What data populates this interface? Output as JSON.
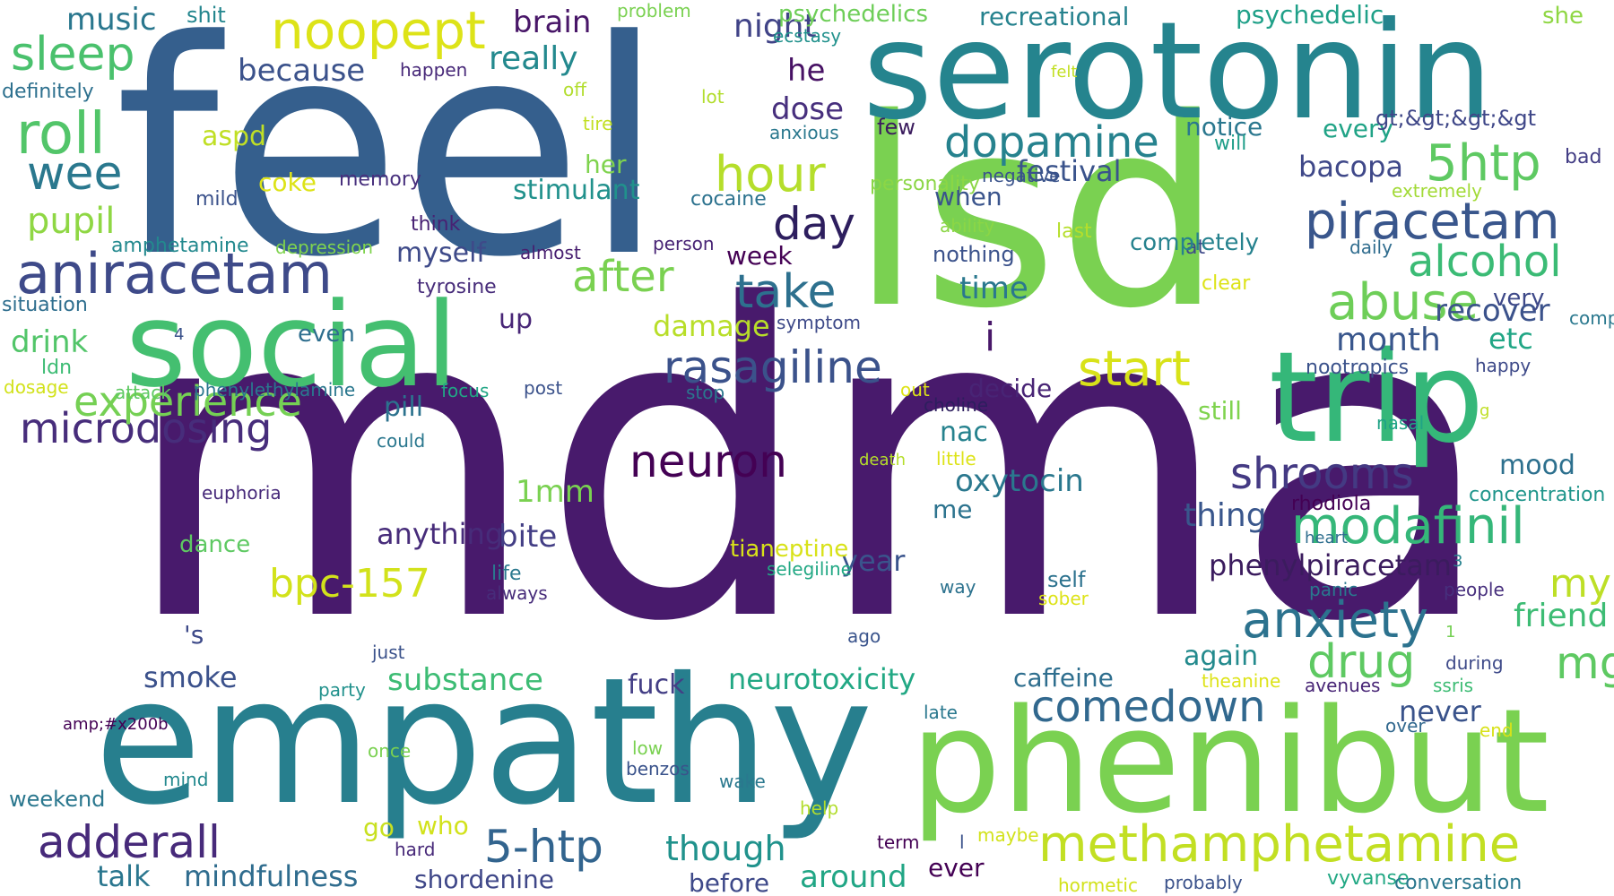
{
  "words": [
    {
      "text": "mdma",
      "color": "#481a6c"
    },
    {
      "text": "feel",
      "color": "#355f8d"
    },
    {
      "text": "lsd",
      "color": "#7ad151"
    },
    {
      "text": "serotonin",
      "color": "#25848e"
    },
    {
      "text": "empathy",
      "color": "#277f8e"
    },
    {
      "text": "phenibut",
      "color": "#7ad151"
    },
    {
      "text": "social",
      "color": "#44bf70"
    },
    {
      "text": "trip",
      "color": "#35b779"
    },
    {
      "text": "aniracetam",
      "color": "#3e4a89"
    },
    {
      "text": "noopept",
      "color": "#dde318"
    },
    {
      "text": "sleep",
      "color": "#4ac16d"
    },
    {
      "text": "roll",
      "color": "#52c569"
    },
    {
      "text": "wee",
      "color": "#2a788e"
    },
    {
      "text": "pupil",
      "color": "#8fd744"
    },
    {
      "text": "dopamine",
      "color": "#26828e"
    },
    {
      "text": "piracetam",
      "color": "#39568c"
    },
    {
      "text": "5htp",
      "color": "#5ec962"
    },
    {
      "text": "alcohol",
      "color": "#3bbb75"
    },
    {
      "text": "abuse",
      "color": "#6ece58"
    },
    {
      "text": "hour",
      "color": "#b5de2b"
    },
    {
      "text": "day",
      "color": "#2d1e5e"
    },
    {
      "text": "after",
      "color": "#7ad151"
    },
    {
      "text": "take",
      "color": "#2d708e"
    },
    {
      "text": "rasagiline",
      "color": "#3b528b"
    },
    {
      "text": "start",
      "color": "#d8e219"
    },
    {
      "text": "methamphetamine",
      "color": "#c2df23"
    },
    {
      "text": "microdosing",
      "color": "#472d7b"
    },
    {
      "text": "experience",
      "color": "#75d054"
    },
    {
      "text": "neuron",
      "color": "#440154"
    },
    {
      "text": "modafinil",
      "color": "#35b779"
    },
    {
      "text": "anxiety",
      "color": "#2c728e"
    },
    {
      "text": "shrooms",
      "color": "#443a83"
    },
    {
      "text": "comedown",
      "color": "#31688e"
    },
    {
      "text": "drug",
      "color": "#5ec962"
    },
    {
      "text": "adderall",
      "color": "#472a7a"
    },
    {
      "text": "5-htp",
      "color": "#32648e"
    },
    {
      "text": "bpc-157",
      "color": "#d2e21b"
    },
    {
      "text": "oxytocin",
      "color": "#2a788e"
    },
    {
      "text": "phenylpiracetam",
      "color": "#3b1c5e"
    },
    {
      "text": "mindfulness",
      "color": "#2f6c8e"
    },
    {
      "text": "neurotoxicity",
      "color": "#22a884"
    },
    {
      "text": "substance",
      "color": "#3dbc74"
    },
    {
      "text": "though",
      "color": "#20928c"
    },
    {
      "text": "around",
      "color": "#21a685"
    },
    {
      "text": "talk",
      "color": "#2a768e"
    },
    {
      "text": "smoke",
      "color": "#3b518b"
    },
    {
      "text": "drink",
      "color": "#52c569"
    },
    {
      "text": "music",
      "color": "#2a778e"
    },
    {
      "text": "because",
      "color": "#3b528b"
    },
    {
      "text": "brain",
      "color": "#481668"
    },
    {
      "text": "really",
      "color": "#23898e"
    },
    {
      "text": "night",
      "color": "#404387"
    },
    {
      "text": "he",
      "color": "#471164"
    },
    {
      "text": "dose",
      "color": "#472f7d"
    },
    {
      "text": "festival",
      "color": "#3a538b"
    },
    {
      "text": "notice",
      "color": "#2a778e"
    },
    {
      "text": "every",
      "color": "#20a386"
    },
    {
      "text": "bacopa",
      "color": "#3f4889"
    },
    {
      "text": "i",
      "color": "#481769"
    },
    {
      "text": "time",
      "color": "#2a788e"
    },
    {
      "text": "month",
      "color": "#39568c"
    },
    {
      "text": "etc",
      "color": "#21a685"
    },
    {
      "text": "recover",
      "color": "#3b528b"
    },
    {
      "text": "mood",
      "color": "#2d708e"
    },
    {
      "text": "my",
      "color": "#bddf26"
    },
    {
      "text": "mg",
      "color": "#5ec962"
    },
    {
      "text": "friend",
      "color": "#3dbc74"
    },
    {
      "text": "never",
      "color": "#3a538b"
    },
    {
      "text": "again",
      "color": "#238a8d"
    },
    {
      "text": "thing",
      "color": "#39568c"
    },
    {
      "text": "caffeine",
      "color": "#2e6e8e"
    },
    {
      "text": "decide",
      "color": "#482475"
    },
    {
      "text": "nac",
      "color": "#26828e"
    },
    {
      "text": "me",
      "color": "#2c738e"
    },
    {
      "text": "year",
      "color": "#3a548c"
    },
    {
      "text": "damage",
      "color": "#b8de29"
    },
    {
      "text": "myself",
      "color": "#3e4a89"
    },
    {
      "text": "week",
      "color": "#440154"
    },
    {
      "text": "pill",
      "color": "#2c728e"
    },
    {
      "text": "up",
      "color": "#482677"
    },
    {
      "text": "even",
      "color": "#2e6e8e"
    },
    {
      "text": "anything",
      "color": "#472c7a"
    },
    {
      "text": "bite",
      "color": "#433e85"
    },
    {
      "text": "1mm",
      "color": "#7ad151"
    },
    {
      "text": "fuck",
      "color": "#433e85"
    },
    {
      "text": "stimulant",
      "color": "#21918c"
    },
    {
      "text": "her",
      "color": "#7fd34e"
    },
    {
      "text": "aspd",
      "color": "#c0df25"
    },
    {
      "text": "coke",
      "color": "#dde318"
    },
    {
      "text": "shit",
      "color": "#24868e"
    },
    {
      "text": "psychedelics",
      "color": "#6ece58"
    },
    {
      "text": "recreational",
      "color": "#26828e"
    },
    {
      "text": "psychedelic",
      "color": "#1fa088"
    },
    {
      "text": "she",
      "color": "#8fd744"
    },
    {
      "text": "gt;&gt;&gt;&gt",
      "color": "#3f4788"
    },
    {
      "text": "bad",
      "color": "#433e85"
    },
    {
      "text": "extremely",
      "color": "#a2da37"
    },
    {
      "text": "will",
      "color": "#1f9e89"
    },
    {
      "text": "felt",
      "color": "#c2df23"
    },
    {
      "text": "lot",
      "color": "#b2dd2d"
    },
    {
      "text": "off",
      "color": "#b2dd2d"
    },
    {
      "text": "tire",
      "color": "#c2df23"
    },
    {
      "text": "anxious",
      "color": "#2a788e"
    },
    {
      "text": "ecstasy",
      "color": "#21918c"
    },
    {
      "text": "problem",
      "color": "#7ad151"
    },
    {
      "text": "happen",
      "color": "#482979"
    },
    {
      "text": "definitely",
      "color": "#2d708e"
    },
    {
      "text": "few",
      "color": "#3b1c5e"
    },
    {
      "text": "negative",
      "color": "#3a538b"
    },
    {
      "text": "when",
      "color": "#3a548c"
    },
    {
      "text": "ability",
      "color": "#8bd646"
    },
    {
      "text": "last",
      "color": "#b5de2b"
    },
    {
      "text": "daily",
      "color": "#2f6c8e"
    },
    {
      "text": "nothing",
      "color": "#3b528b"
    },
    {
      "text": "at",
      "color": "#3e4a89"
    },
    {
      "text": "clear",
      "color": "#dde318"
    },
    {
      "text": "person",
      "color": "#482475"
    },
    {
      "text": "personality",
      "color": "#8bd646"
    },
    {
      "text": "completely",
      "color": "#26828e"
    },
    {
      "text": "cocaine",
      "color": "#2c728e"
    },
    {
      "text": "memory",
      "color": "#472f7d"
    },
    {
      "text": "think",
      "color": "#482173"
    },
    {
      "text": "mild",
      "color": "#3b528b"
    },
    {
      "text": "amphetamine",
      "color": "#23898e"
    },
    {
      "text": "depression",
      "color": "#7fd34e"
    },
    {
      "text": "almost",
      "color": "#481f70"
    },
    {
      "text": "situation",
      "color": "#2e6e8e"
    },
    {
      "text": "tyrosine",
      "color": "#472c7a"
    },
    {
      "text": "symptom",
      "color": "#3e4a89"
    },
    {
      "text": "4",
      "color": "#3b528b"
    },
    {
      "text": "ldn",
      "color": "#3dbc74"
    },
    {
      "text": "dosage",
      "color": "#d2e21b"
    },
    {
      "text": "attack",
      "color": "#5ec962"
    },
    {
      "text": "phenylethylamine",
      "color": "#2a778e"
    },
    {
      "text": "focus",
      "color": "#21a685"
    },
    {
      "text": "post",
      "color": "#3b528b"
    },
    {
      "text": "stop",
      "color": "#2a778e"
    },
    {
      "text": "out",
      "color": "#dde318"
    },
    {
      "text": "choline",
      "color": "#2d1e5e"
    },
    {
      "text": "could",
      "color": "#2a778e"
    },
    {
      "text": "little",
      "color": "#dde318"
    },
    {
      "text": "death",
      "color": "#b5de2b"
    },
    {
      "text": "still",
      "color": "#7fd34e"
    },
    {
      "text": "g",
      "color": "#c0df25"
    },
    {
      "text": "very",
      "color": "#3e4989"
    },
    {
      "text": "nootropics",
      "color": "#3b528b"
    },
    {
      "text": "happy",
      "color": "#3e4a89"
    },
    {
      "text": "compassionate",
      "color": "#2a788e"
    },
    {
      "text": "nasal",
      "color": "#20a386"
    },
    {
      "text": "concentration",
      "color": "#1f958b"
    },
    {
      "text": "rhodiola",
      "color": "#440154"
    },
    {
      "text": "heart",
      "color": "#2e6e8e"
    },
    {
      "text": "3",
      "color": "#26828e"
    },
    {
      "text": "panic",
      "color": "#2a788e"
    },
    {
      "text": "people",
      "color": "#472f7d"
    },
    {
      "text": "1",
      "color": "#75d054"
    },
    {
      "text": "during",
      "color": "#3e4a89"
    },
    {
      "text": "self",
      "color": "#2c728e"
    },
    {
      "text": "sober",
      "color": "#dde318"
    },
    {
      "text": "way",
      "color": "#2c728e"
    },
    {
      "text": "tianeptine",
      "color": "#d8e219"
    },
    {
      "text": "selegiline",
      "color": "#22a884"
    },
    {
      "text": "ago",
      "color": "#3a548c"
    },
    {
      "text": "dance",
      "color": "#5ec962"
    },
    {
      "text": "euphoria",
      "color": "#472a7a"
    },
    {
      "text": "'s",
      "color": "#3e4a89"
    },
    {
      "text": "life",
      "color": "#2a788e"
    },
    {
      "text": "always",
      "color": "#472c7a"
    },
    {
      "text": "just",
      "color": "#3b528b"
    },
    {
      "text": "party",
      "color": "#21918c"
    },
    {
      "text": "once",
      "color": "#7ad151"
    },
    {
      "text": "low",
      "color": "#7ad151"
    },
    {
      "text": "benzos",
      "color": "#3a538b"
    },
    {
      "text": "wake",
      "color": "#2a788e"
    },
    {
      "text": "late",
      "color": "#2a788e"
    },
    {
      "text": "help",
      "color": "#b2dd2d"
    },
    {
      "text": "term",
      "color": "#440154"
    },
    {
      "text": "maybe",
      "color": "#d2e21b"
    },
    {
      "text": "l",
      "color": "#3b528b"
    },
    {
      "text": "ever",
      "color": "#440154"
    },
    {
      "text": "hard",
      "color": "#482979"
    },
    {
      "text": "who",
      "color": "#d2e21b"
    },
    {
      "text": "go",
      "color": "#c8e020"
    },
    {
      "text": "mind",
      "color": "#23898e"
    },
    {
      "text": "amp;#x200b",
      "color": "#440154"
    },
    {
      "text": "weekend",
      "color": "#2a778e"
    },
    {
      "text": "shordenine",
      "color": "#3f4788"
    },
    {
      "text": "before",
      "color": "#3e4989"
    },
    {
      "text": "hormetic",
      "color": "#d2e21b"
    },
    {
      "text": "probably",
      "color": "#3b528b"
    },
    {
      "text": "vyvanse",
      "color": "#22a884"
    },
    {
      "text": "conversation",
      "color": "#2a778e"
    },
    {
      "text": "theanine",
      "color": "#dde318"
    },
    {
      "text": "avenues",
      "color": "#482576"
    },
    {
      "text": "ssris",
      "color": "#3dbc74"
    },
    {
      "text": "over",
      "color": "#31688e"
    },
    {
      "text": "end",
      "color": "#d8e219"
    }
  ]
}
